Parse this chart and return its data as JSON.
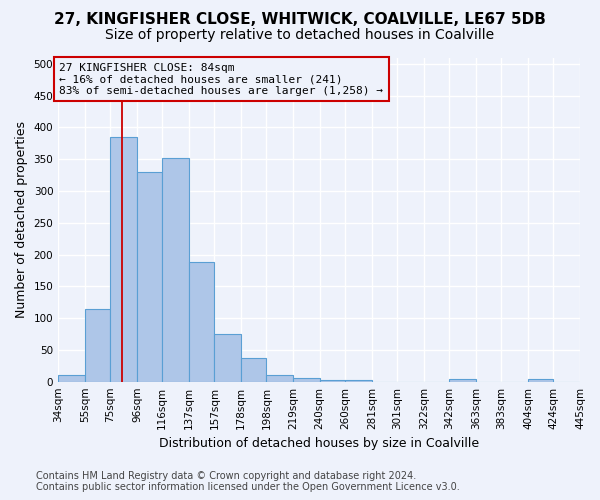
{
  "title": "27, KINGFISHER CLOSE, WHITWICK, COALVILLE, LE67 5DB",
  "subtitle": "Size of property relative to detached houses in Coalville",
  "xlabel": "Distribution of detached houses by size in Coalville",
  "ylabel": "Number of detached properties",
  "bar_color": "#aec6e8",
  "bar_edge_color": "#5a9fd4",
  "annotation_box_color": "#cc0000",
  "annotation_text": "27 KINGFISHER CLOSE: 84sqm\n← 16% of detached houses are smaller (241)\n83% of semi-detached houses are larger (1,258) →",
  "vline_x": 84,
  "vline_color": "#cc0000",
  "bin_edges": [
    34,
    55,
    75,
    96,
    116,
    137,
    157,
    178,
    198,
    219,
    240,
    260,
    281,
    301,
    322,
    342,
    363,
    383,
    404,
    424,
    445
  ],
  "bar_heights": [
    10,
    115,
    385,
    330,
    352,
    188,
    75,
    38,
    11,
    6,
    3,
    3,
    0,
    0,
    0,
    5,
    0,
    0,
    5,
    0
  ],
  "ylim": [
    0,
    510
  ],
  "yticks": [
    0,
    50,
    100,
    150,
    200,
    250,
    300,
    350,
    400,
    450,
    500
  ],
  "background_color": "#eef2fb",
  "grid_color": "#ffffff",
  "footer": "Contains HM Land Registry data © Crown copyright and database right 2024.\nContains public sector information licensed under the Open Government Licence v3.0.",
  "title_fontsize": 11,
  "subtitle_fontsize": 10,
  "xlabel_fontsize": 9,
  "ylabel_fontsize": 9,
  "tick_fontsize": 7.5,
  "annotation_fontsize": 8,
  "footer_fontsize": 7
}
